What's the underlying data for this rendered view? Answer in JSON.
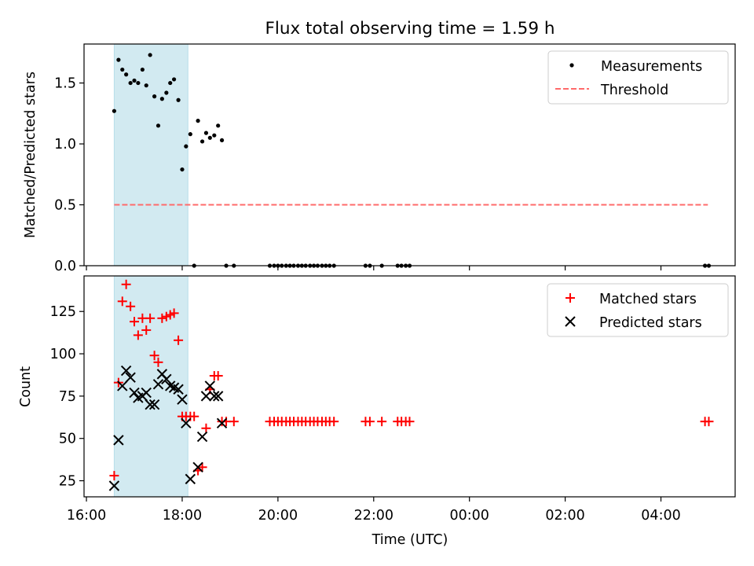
{
  "title": "Flux total observing time = 1.59 h",
  "colors": {
    "measurement": "#000000",
    "threshold": "#ff6b6b",
    "matched": "#ff0000",
    "predicted": "#000000",
    "span": "#add8e6"
  },
  "chart_data": [
    {
      "type": "scatter",
      "ylabel": "Matched/Predicted stars",
      "xlim": [
        15.95,
        29.55
      ],
      "ylim": [
        0,
        1.82
      ],
      "yticks": [
        0.0,
        0.5,
        1.0,
        1.5
      ],
      "ytick_labels": [
        "0.0",
        "0.5",
        "1.0",
        "1.5"
      ],
      "legend": {
        "position": "top-right",
        "labels": [
          "Measurements",
          "Threshold"
        ]
      },
      "shaded_span": [
        16.58,
        18.12
      ],
      "threshold": {
        "y": 0.5,
        "x": [
          16.58,
          28.98
        ]
      },
      "series": [
        {
          "name": "Measurements",
          "x": [
            16.58,
            16.67,
            16.75,
            16.83,
            16.92,
            17.0,
            17.08,
            17.17,
            17.25,
            17.33,
            17.42,
            17.5,
            17.58,
            17.67,
            17.75,
            17.83,
            17.92,
            18.0,
            18.08,
            18.17,
            18.25,
            18.33,
            18.42,
            18.5,
            18.58,
            18.67,
            18.75,
            18.83,
            18.92,
            19.08,
            19.83,
            19.92,
            20.0,
            20.08,
            20.17,
            20.25,
            20.33,
            20.42,
            20.5,
            20.58,
            20.67,
            20.75,
            20.83,
            20.92,
            21.0,
            21.08,
            21.17,
            21.83,
            21.92,
            22.17,
            22.5,
            22.58,
            22.67,
            22.75,
            28.92,
            29.0
          ],
          "y": [
            1.27,
            1.69,
            1.61,
            1.57,
            1.5,
            1.52,
            1.5,
            1.61,
            1.48,
            1.73,
            1.39,
            1.15,
            1.37,
            1.42,
            1.5,
            1.53,
            1.36,
            0.79,
            0.98,
            1.08,
            0.0,
            1.19,
            1.02,
            1.09,
            1.05,
            1.07,
            1.15,
            1.03,
            0.0,
            0.0,
            0.0,
            0.0,
            0.0,
            0.0,
            0.0,
            0.0,
            0.0,
            0.0,
            0.0,
            0.0,
            0.0,
            0.0,
            0.0,
            0.0,
            0.0,
            0.0,
            0.0,
            0.0,
            0.0,
            0.0,
            0.0,
            0.0,
            0.0,
            0.0,
            0.0,
            0.0
          ]
        }
      ]
    },
    {
      "type": "scatter",
      "ylabel": "Count",
      "xlabel": "Time (UTC)",
      "xlim": [
        15.95,
        29.55
      ],
      "ylim": [
        15.5,
        146
      ],
      "yticks": [
        25,
        50,
        75,
        100,
        125
      ],
      "ytick_labels": [
        "25",
        "50",
        "75",
        "100",
        "125"
      ],
      "xticks": [
        16,
        18,
        20,
        22,
        24,
        26,
        28
      ],
      "xtick_labels": [
        "16:00",
        "18:00",
        "20:00",
        "22:00",
        "00:00",
        "02:00",
        "04:00"
      ],
      "legend": {
        "position": "top-right",
        "labels": [
          "Matched stars",
          "Predicted stars"
        ]
      },
      "shaded_span": [
        16.58,
        18.12
      ],
      "series": [
        {
          "name": "Matched stars",
          "x": [
            16.58,
            16.67,
            16.75,
            16.83,
            16.92,
            17.0,
            17.08,
            17.17,
            17.25,
            17.33,
            17.42,
            17.5,
            17.58,
            17.67,
            17.75,
            17.83,
            17.92,
            18.0,
            18.08,
            18.17,
            18.25,
            18.33,
            18.42,
            18.5,
            18.58,
            18.67,
            18.75,
            18.83,
            18.92,
            19.08,
            19.83,
            19.92,
            20.0,
            20.08,
            20.17,
            20.25,
            20.33,
            20.42,
            20.5,
            20.58,
            20.67,
            20.75,
            20.83,
            20.92,
            21.0,
            21.08,
            21.17,
            21.83,
            21.92,
            22.17,
            22.5,
            22.58,
            22.67,
            22.75,
            28.92,
            29.0
          ],
          "y": [
            28,
            83,
            131,
            141,
            128,
            119,
            111,
            121,
            114,
            121,
            99,
            95,
            121,
            122,
            123,
            124,
            108,
            63,
            63,
            63,
            63,
            31,
            33,
            56,
            79,
            87,
            87,
            60,
            60,
            60,
            60,
            60,
            60,
            60,
            60,
            60,
            60,
            60,
            60,
            60,
            60,
            60,
            60,
            60,
            60,
            60,
            60,
            60,
            60,
            60,
            60,
            60,
            60,
            60,
            60,
            60
          ]
        },
        {
          "name": "Predicted stars",
          "x": [
            16.58,
            16.67,
            16.75,
            16.83,
            16.92,
            17.0,
            17.08,
            17.17,
            17.25,
            17.33,
            17.42,
            17.5,
            17.58,
            17.67,
            17.75,
            17.83,
            17.92,
            18.0,
            18.08,
            18.17,
            18.33,
            18.42,
            18.5,
            18.58,
            18.67,
            18.75,
            18.83
          ],
          "y": [
            22,
            49,
            81,
            90,
            86,
            77,
            74,
            75,
            77,
            70,
            70,
            82,
            88,
            85,
            81,
            80,
            79,
            73,
            59,
            26,
            33,
            51,
            75,
            81,
            75,
            75,
            59
          ]
        }
      ]
    }
  ]
}
